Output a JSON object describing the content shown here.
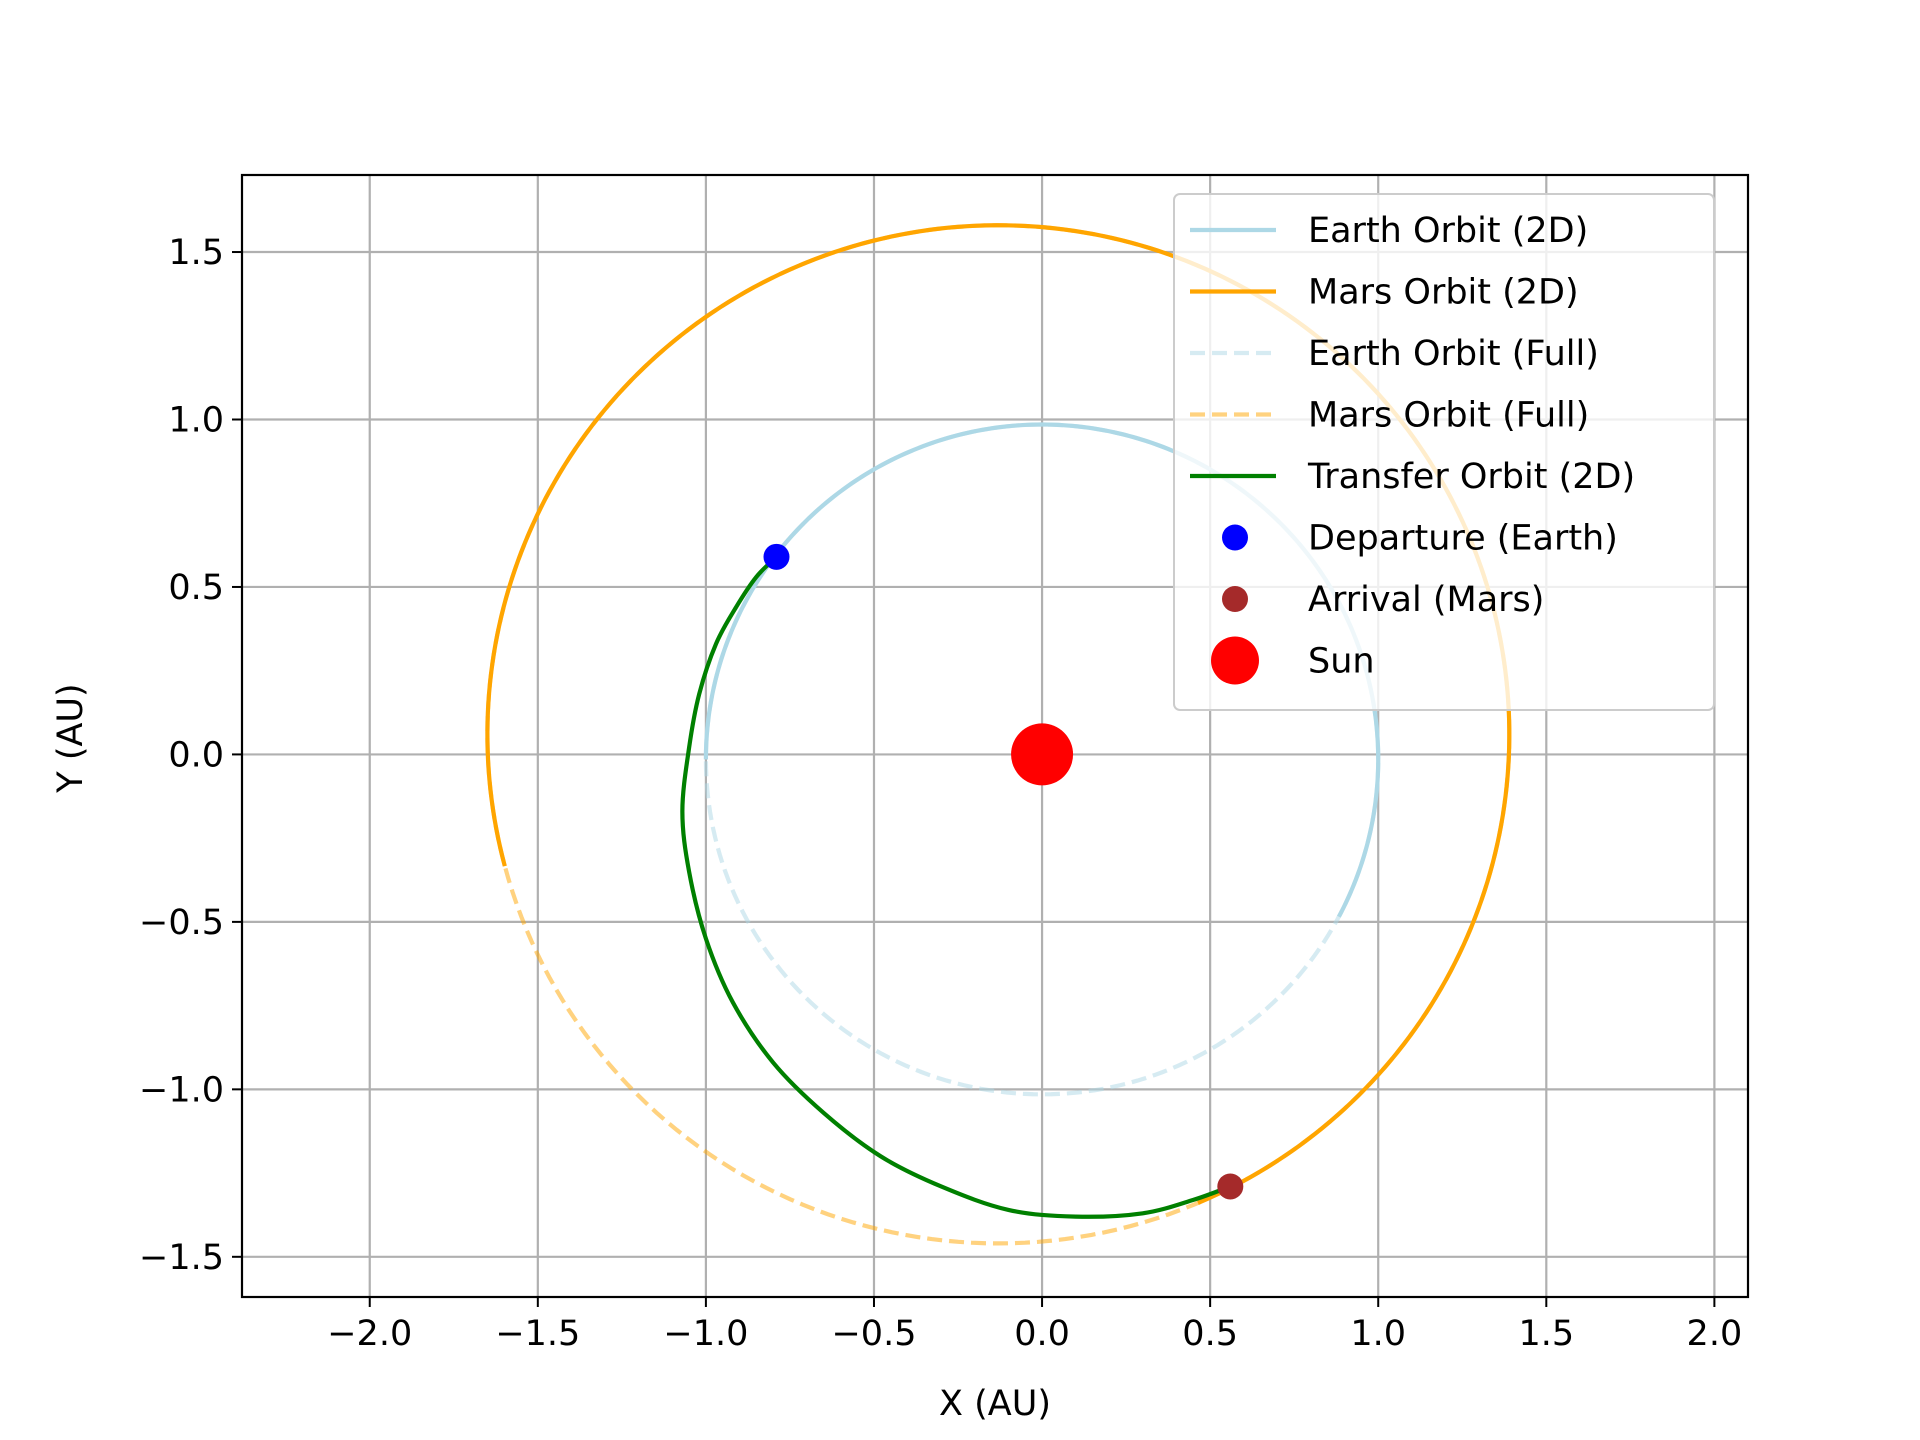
{
  "chart_data": {
    "type": "line",
    "title": "",
    "xlabel": "X (AU)",
    "ylabel": "Y (AU)",
    "xlim": [
      -2.38,
      2.1
    ],
    "ylim": [
      -1.62,
      1.73
    ],
    "xticks": [
      -2.0,
      -1.5,
      -1.0,
      -0.5,
      0.0,
      0.5,
      1.0,
      1.5,
      2.0
    ],
    "yticks": [
      -1.5,
      -1.0,
      -0.5,
      0.0,
      0.5,
      1.0,
      1.5
    ],
    "xtick_labels": [
      "−2.0",
      "−1.5",
      "−1.0",
      "−0.5",
      "0.0",
      "0.5",
      "1.0",
      "1.5",
      "2.0"
    ],
    "ytick_labels": [
      "−1.5",
      "−1.0",
      "−0.5",
      "0.0",
      "0.5",
      "1.0",
      "1.5"
    ],
    "grid": true,
    "legend_position": "top-right",
    "series": [
      {
        "name": "Earth Orbit (2D)",
        "kind": "ellipse-arc",
        "color": "#add8e6",
        "style": "solid",
        "center": [
          0.0,
          -0.015
        ],
        "radii": [
          1.0,
          1.0
        ],
        "angle_range_deg": [
          -28,
          180
        ]
      },
      {
        "name": "Mars Orbit (2D)",
        "kind": "ellipse-arc",
        "color": "#ffa500",
        "style": "solid",
        "center": [
          -0.13,
          0.06
        ],
        "radii": [
          1.52,
          1.52
        ],
        "angle_range_deg": [
          -67,
          195
        ]
      },
      {
        "name": "Earth Orbit (Full)",
        "kind": "ellipse-arc",
        "color": "#add8e6",
        "alpha": 0.5,
        "style": "dashed",
        "center": [
          0.0,
          -0.015
        ],
        "radii": [
          1.0,
          1.0
        ],
        "angle_range_deg": [
          0,
          360
        ]
      },
      {
        "name": "Mars Orbit (Full)",
        "kind": "ellipse-arc",
        "color": "#ffa500",
        "alpha": 0.5,
        "style": "dashed",
        "center": [
          -0.13,
          0.06
        ],
        "radii": [
          1.52,
          1.52
        ],
        "angle_range_deg": [
          0,
          360
        ]
      },
      {
        "name": "Transfer Orbit (2D)",
        "kind": "polyline",
        "color": "#008000",
        "style": "solid",
        "points": [
          [
            -0.79,
            0.59
          ],
          [
            -0.85,
            0.53
          ],
          [
            -0.91,
            0.44
          ],
          [
            -0.97,
            0.33
          ],
          [
            -1.02,
            0.18
          ],
          [
            -1.05,
            0.02
          ],
          [
            -1.07,
            -0.17
          ],
          [
            -1.05,
            -0.35
          ],
          [
            -1.0,
            -0.55
          ],
          [
            -0.92,
            -0.74
          ],
          [
            -0.8,
            -0.92
          ],
          [
            -0.65,
            -1.07
          ],
          [
            -0.48,
            -1.2
          ],
          [
            -0.3,
            -1.29
          ],
          [
            -0.1,
            -1.36
          ],
          [
            0.1,
            -1.38
          ],
          [
            0.3,
            -1.37
          ],
          [
            0.45,
            -1.33
          ],
          [
            0.56,
            -1.29
          ]
        ]
      },
      {
        "name": "Departure (Earth)",
        "kind": "point",
        "color": "#0000ff",
        "x": -0.79,
        "y": 0.59,
        "marker_size": "small"
      },
      {
        "name": "Arrival (Mars)",
        "kind": "point",
        "color": "#a52a2a",
        "x": 0.56,
        "y": -1.29,
        "marker_size": "small"
      },
      {
        "name": "Sun",
        "kind": "point",
        "color": "#ff0000",
        "x": 0.0,
        "y": 0.0,
        "marker_size": "large"
      }
    ]
  }
}
